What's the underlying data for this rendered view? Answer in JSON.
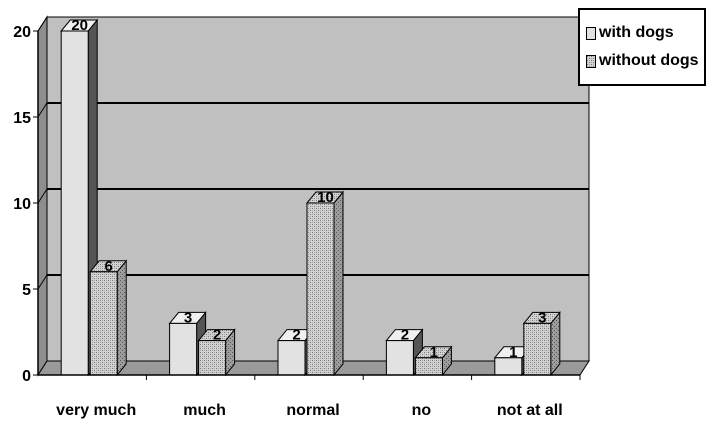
{
  "chart_data": {
    "type": "bar",
    "categories": [
      "very much",
      "much",
      "normal",
      "no",
      "not at all"
    ],
    "series": [
      {
        "name": "with dogs",
        "values": [
          20,
          3,
          2,
          2,
          1
        ]
      },
      {
        "name": "without dogs",
        "values": [
          6,
          2,
          10,
          1,
          3
        ]
      }
    ],
    "y_ticks": [
      "0",
      "5",
      "10",
      "15",
      "20"
    ],
    "ylim": [
      0,
      20
    ],
    "grid": true,
    "legend_position": "top-right",
    "colors": {
      "with_dogs": "#e2e2e2",
      "without_dogs": "#c4c4c4",
      "plot_background": "#c0c0c0",
      "floor": "#9a9a9a"
    }
  }
}
